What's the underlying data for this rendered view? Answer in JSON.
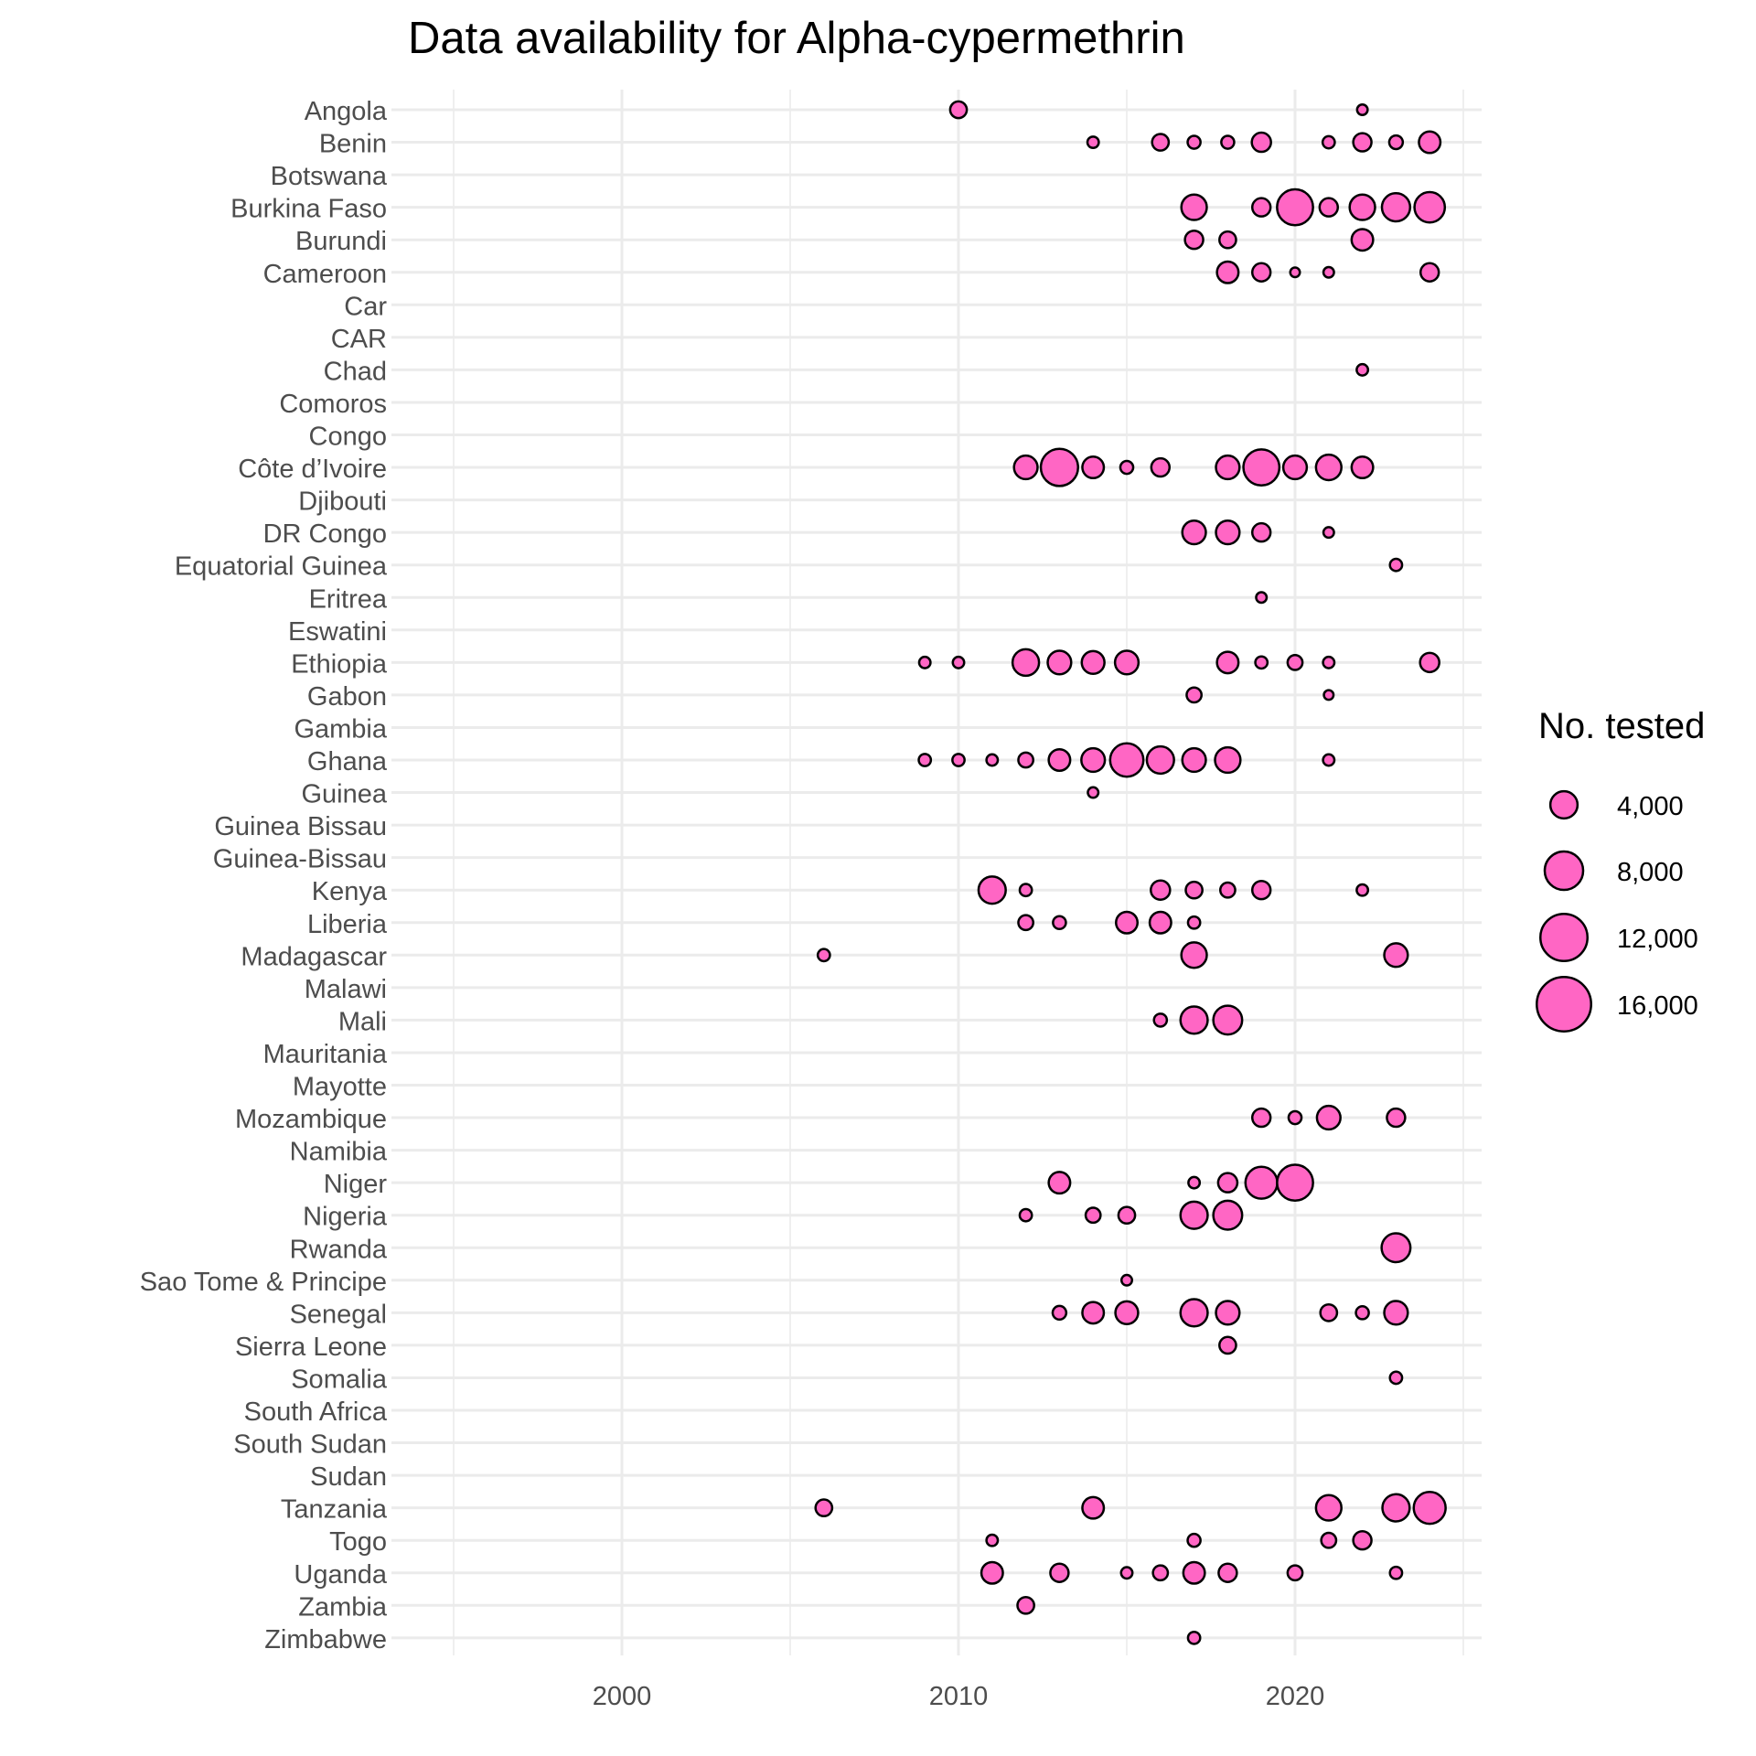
{
  "chart_data": {
    "type": "scatter",
    "title": "Data availability for Alpha-cypermethrin",
    "xlabel": "",
    "ylabel": "",
    "xlim": [
      1994.5,
      2025.5
    ],
    "x_ticks": [
      2000,
      2010,
      2020
    ],
    "x_tick_labels": [
      "2000",
      "2010",
      "2020"
    ],
    "grid": true,
    "categories": [
      "Angola",
      "Benin",
      "Botswana",
      "Burkina Faso",
      "Burundi",
      "Cameroon",
      "Car",
      "CAR",
      "Chad",
      "Comoros",
      "Congo",
      "Côte d’Ivoire",
      "Djibouti",
      "DR Congo",
      "Equatorial Guinea",
      "Eritrea",
      "Eswatini",
      "Ethiopia",
      "Gabon",
      "Gambia",
      "Ghana",
      "Guinea",
      "Guinea Bissau",
      "Guinea-Bissau",
      "Kenya",
      "Liberia",
      "Madagascar",
      "Malawi",
      "Mali",
      "Mauritania",
      "Mayotte",
      "Mozambique",
      "Namibia",
      "Niger",
      "Nigeria",
      "Rwanda",
      "Sao Tome & Principe",
      "Senegal",
      "Sierra Leone",
      "Somalia",
      "South Africa",
      "South Sudan",
      "Sudan",
      "Tanzania",
      "Togo",
      "Uganda",
      "Zambia",
      "Zimbabwe"
    ],
    "size_legend": {
      "title": "No. tested",
      "placement": "right",
      "values": [
        4000,
        8000,
        12000,
        16000
      ],
      "labels": [
        "4,000",
        "8,000",
        "12,000",
        "16,000"
      ]
    },
    "fill_color": "#FF66C4",
    "stroke_color": "#000000",
    "points": [
      {
        "country": "Angola",
        "year": 2010,
        "n": 1500
      },
      {
        "country": "Angola",
        "year": 2022,
        "n": 600
      },
      {
        "country": "Benin",
        "year": 2014,
        "n": 700
      },
      {
        "country": "Benin",
        "year": 2016,
        "n": 1500
      },
      {
        "country": "Benin",
        "year": 2017,
        "n": 900
      },
      {
        "country": "Benin",
        "year": 2018,
        "n": 900
      },
      {
        "country": "Benin",
        "year": 2019,
        "n": 2000
      },
      {
        "country": "Benin",
        "year": 2021,
        "n": 800
      },
      {
        "country": "Benin",
        "year": 2022,
        "n": 1800
      },
      {
        "country": "Benin",
        "year": 2023,
        "n": 1000
      },
      {
        "country": "Benin",
        "year": 2024,
        "n": 2500
      },
      {
        "country": "Burkina Faso",
        "year": 2017,
        "n": 3500
      },
      {
        "country": "Burkina Faso",
        "year": 2019,
        "n": 1800
      },
      {
        "country": "Burkina Faso",
        "year": 2020,
        "n": 7000
      },
      {
        "country": "Burkina Faso",
        "year": 2021,
        "n": 1800
      },
      {
        "country": "Burkina Faso",
        "year": 2022,
        "n": 3500
      },
      {
        "country": "Burkina Faso",
        "year": 2023,
        "n": 4300
      },
      {
        "country": "Burkina Faso",
        "year": 2024,
        "n": 5000
      },
      {
        "country": "Burundi",
        "year": 2017,
        "n": 1800
      },
      {
        "country": "Burundi",
        "year": 2018,
        "n": 1500
      },
      {
        "country": "Burundi",
        "year": 2022,
        "n": 2500
      },
      {
        "country": "Cameroon",
        "year": 2018,
        "n": 2500
      },
      {
        "country": "Cameroon",
        "year": 2019,
        "n": 1800
      },
      {
        "country": "Cameroon",
        "year": 2020,
        "n": 500
      },
      {
        "country": "Cameroon",
        "year": 2021,
        "n": 600
      },
      {
        "country": "Cameroon",
        "year": 2024,
        "n": 1800
      },
      {
        "country": "Chad",
        "year": 2022,
        "n": 700
      },
      {
        "country": "Côte d’Ivoire",
        "year": 2012,
        "n": 3000
      },
      {
        "country": "Côte d’Ivoire",
        "year": 2013,
        "n": 7500
      },
      {
        "country": "Côte d’Ivoire",
        "year": 2014,
        "n": 2500
      },
      {
        "country": "Côte d’Ivoire",
        "year": 2015,
        "n": 900
      },
      {
        "country": "Côte d’Ivoire",
        "year": 2016,
        "n": 1800
      },
      {
        "country": "Côte d’Ivoire",
        "year": 2018,
        "n": 3000
      },
      {
        "country": "Côte d’Ivoire",
        "year": 2019,
        "n": 7000
      },
      {
        "country": "Côte d’Ivoire",
        "year": 2020,
        "n": 3000
      },
      {
        "country": "Côte d’Ivoire",
        "year": 2021,
        "n": 3500
      },
      {
        "country": "Côte d’Ivoire",
        "year": 2022,
        "n": 2500
      },
      {
        "country": "DR Congo",
        "year": 2017,
        "n": 3000
      },
      {
        "country": "DR Congo",
        "year": 2018,
        "n": 3000
      },
      {
        "country": "DR Congo",
        "year": 2019,
        "n": 1800
      },
      {
        "country": "DR Congo",
        "year": 2021,
        "n": 600
      },
      {
        "country": "Equatorial Guinea",
        "year": 2023,
        "n": 800
      },
      {
        "country": "Eritrea",
        "year": 2019,
        "n": 600
      },
      {
        "country": "Ethiopia",
        "year": 2009,
        "n": 700
      },
      {
        "country": "Ethiopia",
        "year": 2010,
        "n": 700
      },
      {
        "country": "Ethiopia",
        "year": 2012,
        "n": 3800
      },
      {
        "country": "Ethiopia",
        "year": 2013,
        "n": 3000
      },
      {
        "country": "Ethiopia",
        "year": 2014,
        "n": 2800
      },
      {
        "country": "Ethiopia",
        "year": 2015,
        "n": 3000
      },
      {
        "country": "Ethiopia",
        "year": 2018,
        "n": 2500
      },
      {
        "country": "Ethiopia",
        "year": 2019,
        "n": 800
      },
      {
        "country": "Ethiopia",
        "year": 2020,
        "n": 1200
      },
      {
        "country": "Ethiopia",
        "year": 2021,
        "n": 700
      },
      {
        "country": "Ethiopia",
        "year": 2024,
        "n": 2000
      },
      {
        "country": "Gabon",
        "year": 2017,
        "n": 1200
      },
      {
        "country": "Gabon",
        "year": 2021,
        "n": 500
      },
      {
        "country": "Ghana",
        "year": 2009,
        "n": 800
      },
      {
        "country": "Ghana",
        "year": 2010,
        "n": 800
      },
      {
        "country": "Ghana",
        "year": 2011,
        "n": 700
      },
      {
        "country": "Ghana",
        "year": 2012,
        "n": 1200
      },
      {
        "country": "Ghana",
        "year": 2013,
        "n": 2500
      },
      {
        "country": "Ghana",
        "year": 2014,
        "n": 3000
      },
      {
        "country": "Ghana",
        "year": 2015,
        "n": 6000
      },
      {
        "country": "Ghana",
        "year": 2016,
        "n": 4000
      },
      {
        "country": "Ghana",
        "year": 2017,
        "n": 3000
      },
      {
        "country": "Ghana",
        "year": 2018,
        "n": 3500
      },
      {
        "country": "Ghana",
        "year": 2021,
        "n": 700
      },
      {
        "country": "Guinea",
        "year": 2014,
        "n": 600
      },
      {
        "country": "Kenya",
        "year": 2011,
        "n": 4000
      },
      {
        "country": "Kenya",
        "year": 2012,
        "n": 800
      },
      {
        "country": "Kenya",
        "year": 2016,
        "n": 2000
      },
      {
        "country": "Kenya",
        "year": 2017,
        "n": 1500
      },
      {
        "country": "Kenya",
        "year": 2018,
        "n": 1200
      },
      {
        "country": "Kenya",
        "year": 2019,
        "n": 1800
      },
      {
        "country": "Kenya",
        "year": 2022,
        "n": 700
      },
      {
        "country": "Liberia",
        "year": 2012,
        "n": 1200
      },
      {
        "country": "Liberia",
        "year": 2013,
        "n": 900
      },
      {
        "country": "Liberia",
        "year": 2015,
        "n": 2500
      },
      {
        "country": "Liberia",
        "year": 2016,
        "n": 2500
      },
      {
        "country": "Liberia",
        "year": 2017,
        "n": 800
      },
      {
        "country": "Madagascar",
        "year": 2006,
        "n": 800
      },
      {
        "country": "Madagascar",
        "year": 2017,
        "n": 3500
      },
      {
        "country": "Madagascar",
        "year": 2023,
        "n": 3000
      },
      {
        "country": "Mali",
        "year": 2016,
        "n": 900
      },
      {
        "country": "Mali",
        "year": 2017,
        "n": 4000
      },
      {
        "country": "Mali",
        "year": 2018,
        "n": 4500
      },
      {
        "country": "Mozambique",
        "year": 2019,
        "n": 1800
      },
      {
        "country": "Mozambique",
        "year": 2020,
        "n": 900
      },
      {
        "country": "Mozambique",
        "year": 2021,
        "n": 3000
      },
      {
        "country": "Mozambique",
        "year": 2023,
        "n": 1800
      },
      {
        "country": "Niger",
        "year": 2013,
        "n": 2500
      },
      {
        "country": "Niger",
        "year": 2017,
        "n": 700
      },
      {
        "country": "Niger",
        "year": 2018,
        "n": 2000
      },
      {
        "country": "Niger",
        "year": 2019,
        "n": 5500
      },
      {
        "country": "Niger",
        "year": 2020,
        "n": 7000
      },
      {
        "country": "Nigeria",
        "year": 2012,
        "n": 800
      },
      {
        "country": "Nigeria",
        "year": 2014,
        "n": 1200
      },
      {
        "country": "Nigeria",
        "year": 2015,
        "n": 1500
      },
      {
        "country": "Nigeria",
        "year": 2017,
        "n": 4000
      },
      {
        "country": "Nigeria",
        "year": 2018,
        "n": 4500
      },
      {
        "country": "Rwanda",
        "year": 2023,
        "n": 4500
      },
      {
        "country": "Sao Tome & Principe",
        "year": 2015,
        "n": 600
      },
      {
        "country": "Senegal",
        "year": 2013,
        "n": 1000
      },
      {
        "country": "Senegal",
        "year": 2014,
        "n": 2500
      },
      {
        "country": "Senegal",
        "year": 2015,
        "n": 2800
      },
      {
        "country": "Senegal",
        "year": 2017,
        "n": 4000
      },
      {
        "country": "Senegal",
        "year": 2018,
        "n": 3000
      },
      {
        "country": "Senegal",
        "year": 2021,
        "n": 1500
      },
      {
        "country": "Senegal",
        "year": 2022,
        "n": 900
      },
      {
        "country": "Senegal",
        "year": 2023,
        "n": 3000
      },
      {
        "country": "Sierra Leone",
        "year": 2018,
        "n": 1500
      },
      {
        "country": "Somalia",
        "year": 2023,
        "n": 800
      },
      {
        "country": "Tanzania",
        "year": 2006,
        "n": 1500
      },
      {
        "country": "Tanzania",
        "year": 2014,
        "n": 2500
      },
      {
        "country": "Tanzania",
        "year": 2021,
        "n": 3500
      },
      {
        "country": "Tanzania",
        "year": 2023,
        "n": 4000
      },
      {
        "country": "Tanzania",
        "year": 2024,
        "n": 5500
      },
      {
        "country": "Togo",
        "year": 2011,
        "n": 700
      },
      {
        "country": "Togo",
        "year": 2017,
        "n": 900
      },
      {
        "country": "Togo",
        "year": 2021,
        "n": 1200
      },
      {
        "country": "Togo",
        "year": 2022,
        "n": 1800
      },
      {
        "country": "Uganda",
        "year": 2011,
        "n": 2500
      },
      {
        "country": "Uganda",
        "year": 2013,
        "n": 1800
      },
      {
        "country": "Uganda",
        "year": 2015,
        "n": 700
      },
      {
        "country": "Uganda",
        "year": 2016,
        "n": 1200
      },
      {
        "country": "Uganda",
        "year": 2017,
        "n": 2500
      },
      {
        "country": "Uganda",
        "year": 2018,
        "n": 1800
      },
      {
        "country": "Uganda",
        "year": 2020,
        "n": 1200
      },
      {
        "country": "Uganda",
        "year": 2023,
        "n": 800
      },
      {
        "country": "Zambia",
        "year": 2012,
        "n": 1500
      },
      {
        "country": "Zimbabwe",
        "year": 2017,
        "n": 800
      }
    ]
  }
}
